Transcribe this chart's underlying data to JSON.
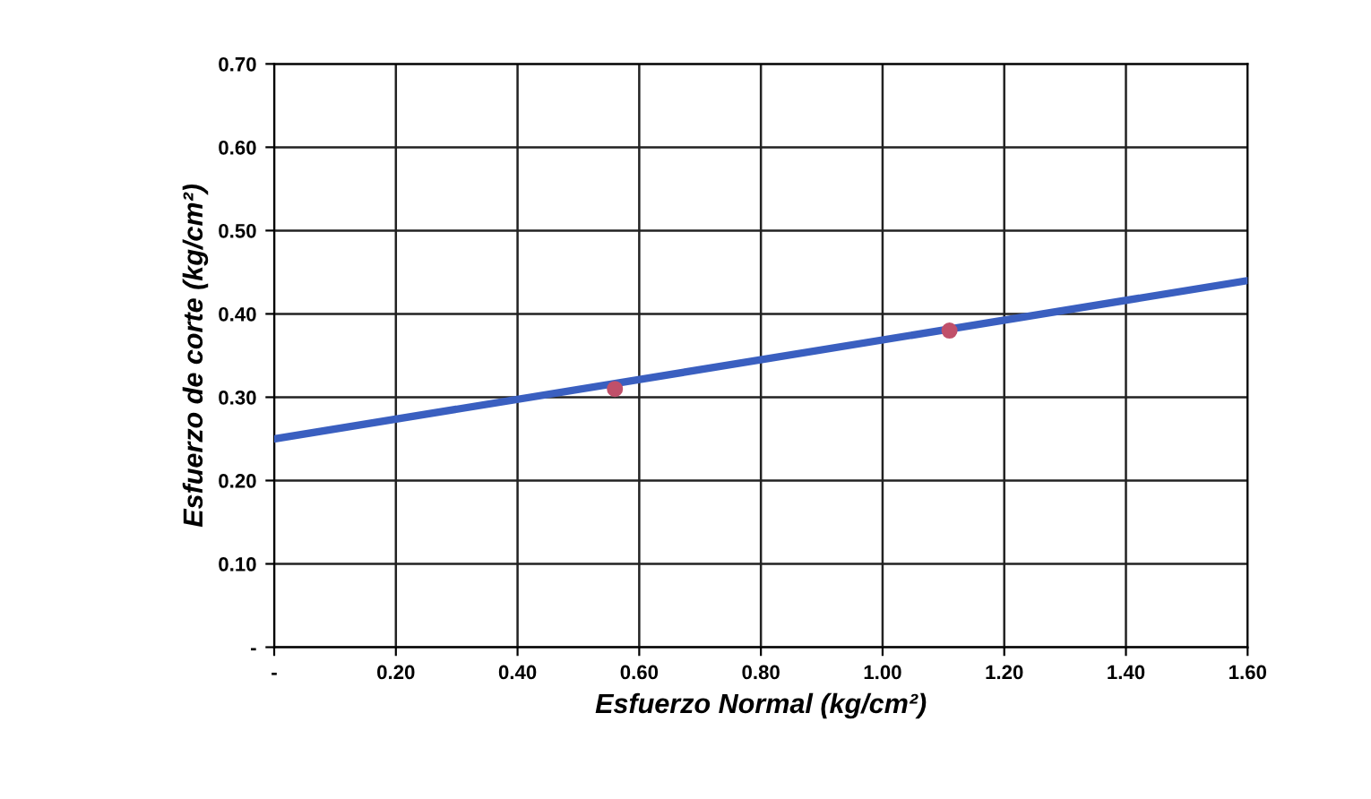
{
  "chart_data": {
    "type": "scatter",
    "xlabel": "Esfuerzo Normal (kg/cm²)",
    "ylabel": "Esfuerzo de corte (kg/cm²)",
    "series": [
      {
        "type": "line",
        "color": "#3a5fc0",
        "x": [
          0,
          1.6
        ],
        "values": [
          0.25,
          0.44
        ],
        "marker": "none",
        "line_style": "solid"
      },
      {
        "color": "#c0506a",
        "x": [
          0.56,
          1.11
        ],
        "values": [
          0.31,
          0.38
        ],
        "marker": "circle"
      }
    ],
    "xlim": [
      0,
      1.6
    ],
    "ylim": [
      0,
      0.7
    ],
    "xticks": [
      {
        "value": 0,
        "label": "-"
      },
      {
        "value": 0.2,
        "label": "0.20"
      },
      {
        "value": 0.4,
        "label": "0.40"
      },
      {
        "value": 0.6,
        "label": "0.60"
      },
      {
        "value": 0.8,
        "label": "0.80"
      },
      {
        "value": 1.0,
        "label": "1.00"
      },
      {
        "value": 1.2,
        "label": "1.20"
      },
      {
        "value": 1.4,
        "label": "1.40"
      },
      {
        "value": 1.6,
        "label": "1.60"
      }
    ],
    "yticks": [
      {
        "value": 0,
        "label": "-"
      },
      {
        "value": 0.1,
        "label": "0.10"
      },
      {
        "value": 0.2,
        "label": "0.20"
      },
      {
        "value": 0.3,
        "label": "0.30"
      },
      {
        "value": 0.4,
        "label": "0.40"
      },
      {
        "value": 0.5,
        "label": "0.50"
      },
      {
        "value": 0.6,
        "label": "0.60"
      },
      {
        "value": 0.7,
        "label": "0.70"
      }
    ],
    "grid": true,
    "legend": false
  }
}
